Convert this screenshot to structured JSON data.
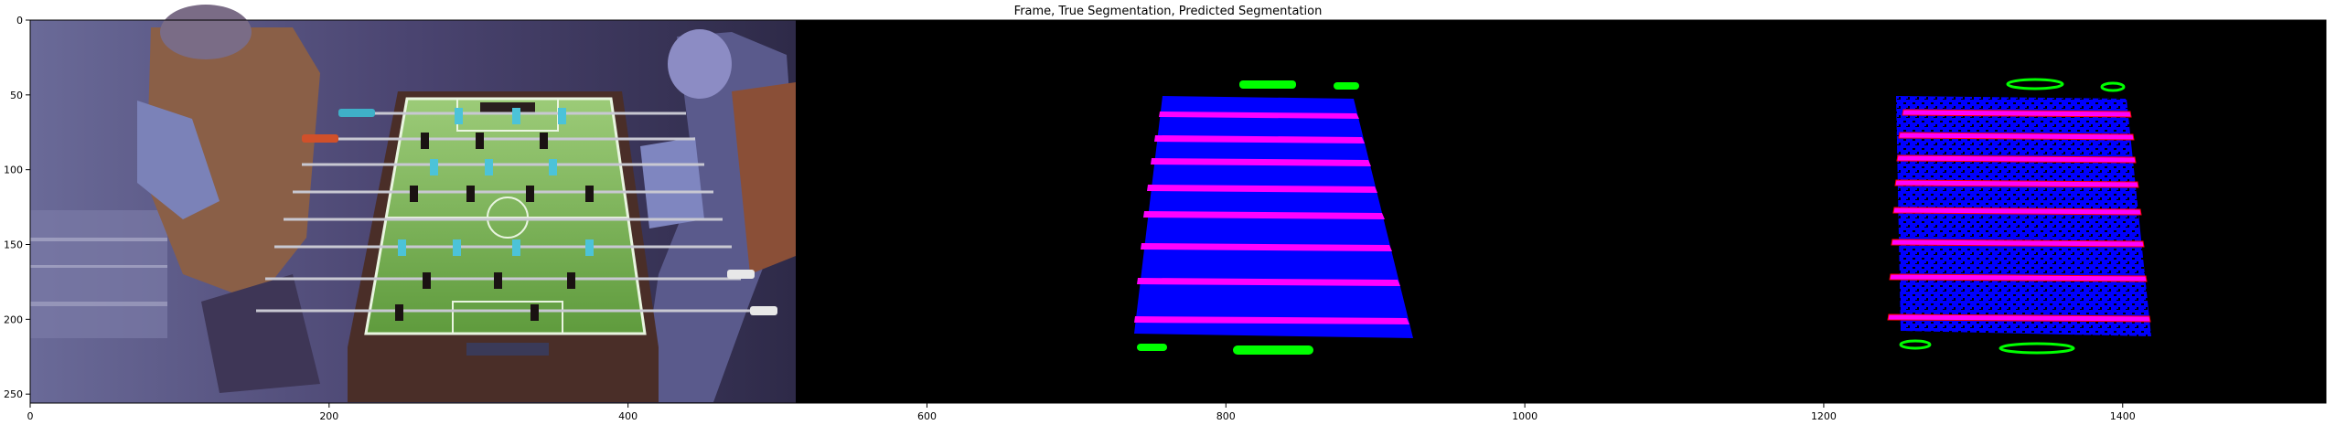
{
  "title": "Frame, True Segmentation, Predicted Segmentation",
  "panels": [
    "camera-frame",
    "true-segmentation",
    "predicted-segmentation"
  ],
  "x_axis": {
    "ticks": [
      "0",
      "200",
      "400",
      "600",
      "800",
      "1000",
      "1200",
      "1400"
    ],
    "range": [
      0,
      1536
    ]
  },
  "y_axis": {
    "ticks": [
      "0",
      "50",
      "100",
      "150",
      "200",
      "250"
    ],
    "range": [
      0,
      256
    ]
  },
  "colors": {
    "segment_table": "#0000ff",
    "segment_rod": "#ff00ff",
    "segment_marker": "#00ff00",
    "predicted_noise": "#000000",
    "predicted_edge": "#ff0000",
    "background": "#000000",
    "table_green": "#7fbf55"
  }
}
